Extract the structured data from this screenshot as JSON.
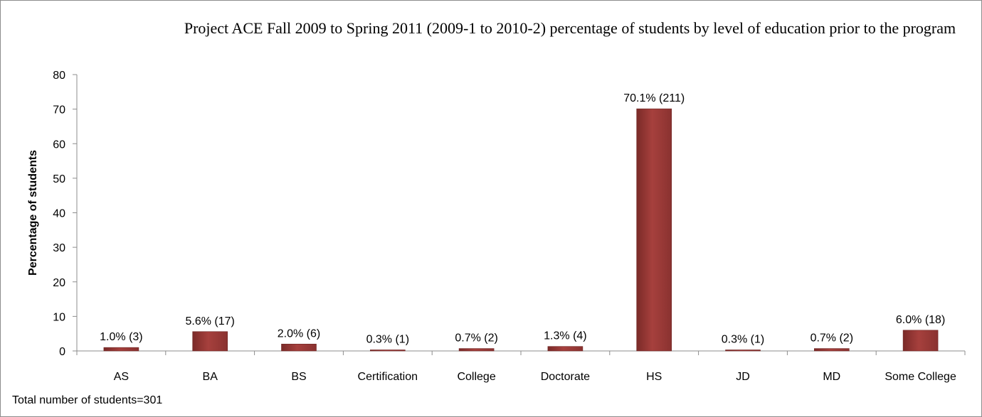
{
  "chart_data": {
    "type": "bar",
    "title": "Project ACE Fall 2009 to Spring 2011 (2009-1 to 2010-2)  percentage of students by level of education prior to the program",
    "ylabel": "Percentage of students",
    "xlabel": "",
    "ylim": [
      0,
      80
    ],
    "yticks": [
      0,
      10,
      20,
      30,
      40,
      50,
      60,
      70,
      80
    ],
    "categories": [
      "AS",
      "BA",
      "BS",
      "Certification",
      "College",
      "Doctorate",
      "HS",
      "JD",
      "MD",
      "Some College"
    ],
    "values": [
      1.0,
      5.6,
      2.0,
      0.3,
      0.7,
      1.3,
      70.1,
      0.3,
      0.7,
      6.0
    ],
    "data_labels": [
      "1.0% (3)",
      "5.6% (17)",
      "2.0% (6)",
      "0.3% (1)",
      "0.7% (2)",
      "1.3% (4)",
      "70.1% (211)",
      "0.3% (1)",
      "0.7% (2)",
      "6.0% (18)"
    ],
    "bar_color": "#9b3a38",
    "grid": false,
    "legend": "none",
    "footnote": "Total number of students=301"
  }
}
